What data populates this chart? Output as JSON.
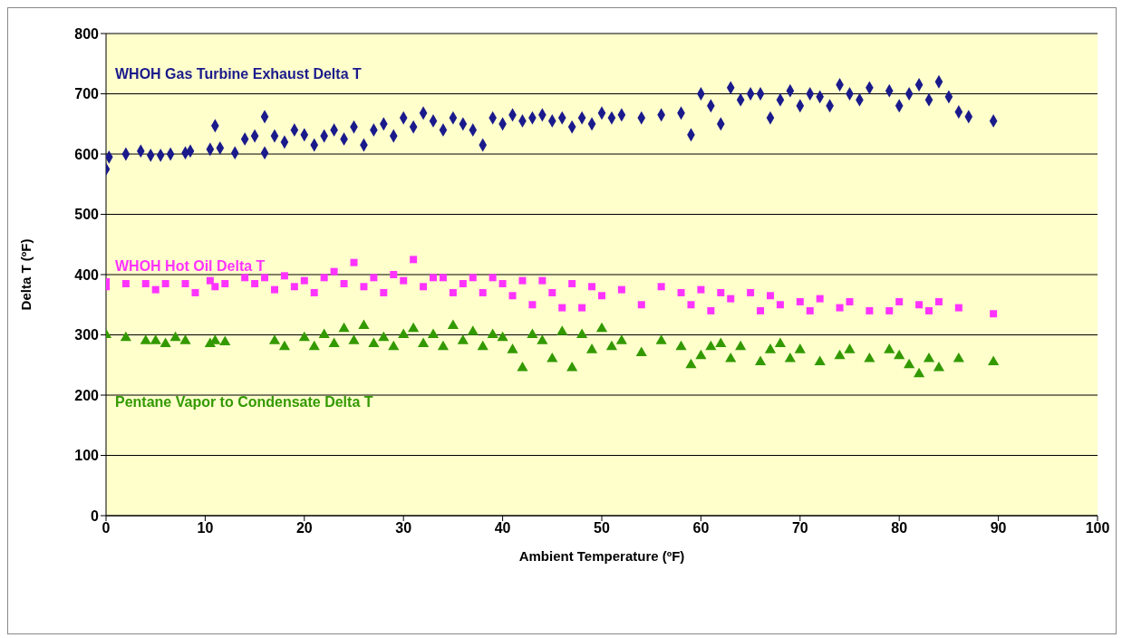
{
  "chart_data": {
    "type": "scatter",
    "xlabel": "Ambient Temperature (ºF)",
    "ylabel": "Delta T (ºF)",
    "xlim": [
      0,
      100
    ],
    "xticks": [
      0,
      10,
      20,
      30,
      40,
      50,
      60,
      70,
      80,
      90,
      100
    ],
    "ylim": [
      0,
      800
    ],
    "yticks": [
      0,
      100,
      200,
      300,
      400,
      500,
      600,
      700,
      800
    ],
    "grid": "y",
    "series": [
      {
        "name": "WHOH Gas Turbine Exhaust Delta T",
        "color": "#1a1a8c",
        "marker": "diamond",
        "x": [
          0,
          0.3,
          2,
          3.5,
          4.5,
          5.5,
          6.5,
          8,
          8.5,
          10.5,
          11,
          11.5,
          13,
          14,
          15,
          16,
          16,
          17,
          18,
          19,
          20,
          21,
          22,
          23,
          24,
          25,
          26,
          27,
          28,
          29,
          30,
          31,
          32,
          33,
          34,
          35,
          36,
          37,
          38,
          39,
          40,
          41,
          42,
          43,
          44,
          45,
          46,
          47,
          48,
          49,
          50,
          51,
          52,
          54,
          56,
          58,
          59,
          60,
          61,
          62,
          63,
          64,
          65,
          66,
          67,
          68,
          69,
          70,
          71,
          72,
          73,
          74,
          75,
          76,
          77,
          79,
          80,
          81,
          82,
          83,
          84,
          85,
          86,
          87,
          89.5
        ],
        "values": [
          575,
          595,
          600,
          605,
          598,
          598,
          600,
          602,
          605,
          608,
          647,
          610,
          602,
          625,
          630,
          662,
          602,
          630,
          620,
          640,
          632,
          615,
          630,
          640,
          625,
          645,
          615,
          640,
          650,
          630,
          660,
          645,
          668,
          655,
          640,
          660,
          650,
          640,
          615,
          660,
          650,
          665,
          655,
          660,
          665,
          655,
          660,
          645,
          660,
          650,
          668,
          660,
          665,
          660,
          665,
          668,
          632,
          700,
          680,
          650,
          710,
          690,
          700,
          700,
          660,
          690,
          705,
          680,
          700,
          695,
          680,
          715,
          700,
          690,
          710,
          705,
          680,
          700,
          715,
          690,
          720,
          695,
          670,
          662,
          655
        ]
      },
      {
        "name": "WHOH Hot Oil Delta T",
        "color": "#ff33ff",
        "marker": "square",
        "x": [
          0,
          0,
          2,
          4,
          5,
          6,
          8,
          9,
          10.5,
          11,
          12,
          14,
          15,
          16,
          17,
          18,
          19,
          20,
          21,
          22,
          23,
          24,
          25,
          26,
          27,
          28,
          29,
          30,
          31,
          32,
          33,
          34,
          35,
          36,
          37,
          38,
          39,
          40,
          41,
          42,
          43,
          44,
          45,
          46,
          47,
          48,
          49,
          50,
          52,
          54,
          56,
          58,
          59,
          60,
          61,
          62,
          63,
          65,
          66,
          67,
          68,
          70,
          71,
          72,
          74,
          75,
          77,
          79,
          80,
          82,
          83,
          84,
          86,
          89.5
        ],
        "values": [
          380,
          388,
          385,
          385,
          375,
          385,
          385,
          370,
          390,
          380,
          385,
          395,
          385,
          395,
          375,
          398,
          380,
          390,
          370,
          395,
          405,
          385,
          420,
          380,
          395,
          370,
          400,
          390,
          425,
          380,
          395,
          395,
          370,
          385,
          395,
          370,
          395,
          385,
          365,
          390,
          350,
          390,
          370,
          345,
          385,
          345,
          380,
          365,
          375,
          350,
          380,
          370,
          350,
          375,
          340,
          370,
          360,
          370,
          340,
          365,
          350,
          355,
          340,
          360,
          345,
          355,
          340,
          340,
          355,
          350,
          340,
          355,
          345,
          335
        ]
      },
      {
        "name": "Pentane Vapor to Condensate Delta T",
        "color": "#339900",
        "marker": "triangle",
        "x": [
          0,
          2,
          4,
          5,
          6,
          7,
          8,
          10.5,
          11,
          12,
          17,
          18,
          20,
          21,
          22,
          23,
          24,
          25,
          26,
          27,
          28,
          29,
          30,
          31,
          32,
          33,
          34,
          35,
          36,
          37,
          38,
          39,
          40,
          41,
          42,
          43,
          44,
          45,
          46,
          47,
          48,
          49,
          50,
          51,
          52,
          54,
          56,
          58,
          59,
          60,
          61,
          62,
          63,
          64,
          66,
          67,
          68,
          69,
          70,
          72,
          74,
          75,
          77,
          79,
          80,
          81,
          82,
          83,
          84,
          86,
          89.5
        ],
        "values": [
          300,
          295,
          290,
          290,
          285,
          295,
          290,
          285,
          290,
          288,
          290,
          280,
          295,
          280,
          300,
          285,
          310,
          290,
          315,
          285,
          295,
          280,
          300,
          310,
          285,
          300,
          280,
          315,
          290,
          305,
          280,
          300,
          295,
          275,
          245,
          300,
          290,
          260,
          305,
          245,
          300,
          275,
          310,
          280,
          290,
          270,
          290,
          280,
          250,
          265,
          280,
          285,
          260,
          280,
          255,
          275,
          285,
          260,
          275,
          255,
          265,
          275,
          260,
          275,
          265,
          250,
          235,
          260,
          245,
          260,
          255
        ]
      }
    ]
  }
}
